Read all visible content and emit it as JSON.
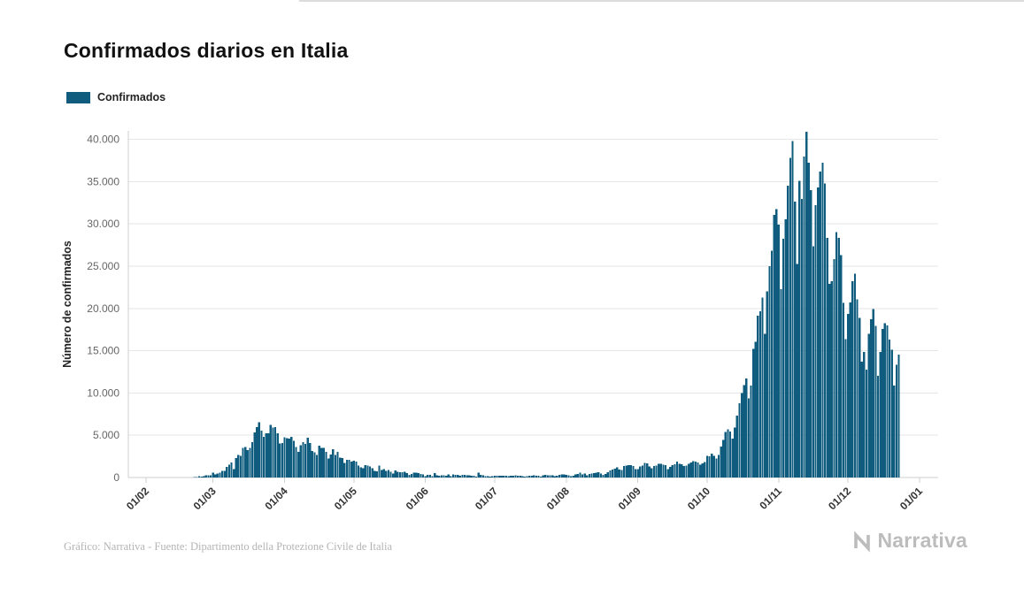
{
  "title": "Confirmados diarios en Italia",
  "legend": {
    "label": "Confirmados",
    "color": "#0f5c7f"
  },
  "footer": {
    "credit": "Gráfico: Narrativa - Fuente: Dipartimento della Protezione Civile de Italia",
    "brand": "Narrativa"
  },
  "chart_data": {
    "type": "bar",
    "title": "Confirmados diarios en Italia",
    "xlabel": "",
    "ylabel": "Número de confirmados",
    "ylim": [
      0,
      41000
    ],
    "grid": true,
    "legend_position": "top-left",
    "yticks": [
      0,
      5000,
      10000,
      15000,
      20000,
      25000,
      30000,
      35000,
      40000
    ],
    "ytick_labels": [
      "0",
      "5.000",
      "10.000",
      "15.000",
      "20.000",
      "25.000",
      "30.000",
      "35.000",
      "40.000"
    ],
    "x_domain_days": 335,
    "xticks": [
      {
        "label": "01/02",
        "day": 0
      },
      {
        "label": "01/03",
        "day": 29
      },
      {
        "label": "01/04",
        "day": 60
      },
      {
        "label": "01/05",
        "day": 90
      },
      {
        "label": "01/06",
        "day": 121
      },
      {
        "label": "01/07",
        "day": 151
      },
      {
        "label": "01/08",
        "day": 182
      },
      {
        "label": "01/09",
        "day": 213
      },
      {
        "label": "01/10",
        "day": 243
      },
      {
        "label": "01/11",
        "day": 274
      },
      {
        "label": "01/12",
        "day": 304
      },
      {
        "label": "01/01",
        "day": 335
      }
    ],
    "series": [
      {
        "name": "Confirmados",
        "color": "#0f5c7f",
        "start_tick": "01/02",
        "values": [
          0,
          0,
          0,
          0,
          0,
          0,
          0,
          0,
          0,
          0,
          0,
          0,
          0,
          0,
          0,
          0,
          0,
          0,
          0,
          0,
          17,
          60,
          78,
          150,
          97,
          147,
          250,
          238,
          240,
          566,
          342,
          466,
          587,
          769,
          778,
          1247,
          1492,
          1797,
          977,
          2313,
          2651,
          2547,
          3497,
          3590,
          3233,
          3526,
          4207,
          5322,
          5986,
          6557,
          5560,
          4789,
          5249,
          5210,
          6203,
          5909,
          5974,
          5217,
          4050,
          4053,
          4782,
          4668,
          4585,
          4805,
          4316,
          3599,
          3039,
          3836,
          4204,
          3951,
          4694,
          4092,
          3153,
          2972,
          2667,
          3786,
          3493,
          3491,
          3047,
          2256,
          2729,
          3370,
          2646,
          3021,
          2357,
          2324,
          1739,
          2091,
          2086,
          1872,
          1965,
          1900,
          1389,
          1221,
          1075,
          1444,
          1401,
          1327,
          1083,
          802,
          744,
          1402,
          888,
          992,
          789,
          875,
          675,
          451,
          813,
          665,
          642,
          652,
          669,
          531,
          300,
          397,
          584,
          593,
          516,
          416,
          355,
          178,
          318,
          321,
          177,
          518,
          270,
          197,
          280,
          283,
          202,
          379,
          163,
          346,
          338,
          301,
          210,
          329,
          331,
          251,
          264,
          224,
          221,
          113,
          577,
          296,
          255,
          175,
          174,
          126,
          142,
          187,
          201,
          223,
          235,
          192,
          208,
          137,
          193,
          214,
          276,
          188,
          234,
          169,
          114,
          162,
          230,
          233,
          249,
          219,
          190,
          128,
          282,
          306,
          252,
          275,
          255,
          170,
          212,
          289,
          386,
          379,
          295,
          239,
          159,
          190,
          384,
          402,
          552,
          347,
          463,
          259,
          412,
          481,
          523,
          574,
          629,
          479,
          320,
          403,
          642,
          845,
          947,
          1071,
          1210,
          953,
          878,
          1367,
          1411,
          1462,
          1444,
          1365,
          996,
          978,
          1326,
          1397,
          1733,
          1694,
          1297,
          1108,
          1370,
          1434,
          1597,
          1616,
          1501,
          1458,
          1008,
          1229,
          1452,
          1585,
          1907,
          1638,
          1587,
          1350,
          1392,
          1640,
          1786,
          1912,
          1869,
          1766,
          1494,
          1648,
          1851,
          2548,
          2499,
          2844,
          2578,
          2257,
          2677,
          3678,
          4458,
          5372,
          5724,
          5456,
          4619,
          5901,
          7332,
          8804,
          10010,
          10925,
          11705,
          9338,
          10874,
          15199,
          16079,
          19143,
          19644,
          21273,
          17012,
          21994,
          24991,
          26831,
          31084,
          31758,
          29907,
          22253,
          28244,
          30550,
          34505,
          37809,
          39811,
          32616,
          25271,
          35098,
          32961,
          37978,
          40902,
          37255,
          33979,
          27354,
          32191,
          34283,
          36176,
          37242,
          34767,
          28337,
          22930,
          23232,
          25853,
          29003,
          28352,
          26323,
          20648,
          16377,
          19350,
          20709,
          23225,
          24099,
          21052,
          18887,
          13720,
          14842,
          12756,
          16999,
          18727,
          19903,
          17938,
          12030,
          14844,
          17572,
          18236,
          17992,
          16308,
          15104,
          10872,
          13318,
          14522
        ]
      }
    ]
  }
}
